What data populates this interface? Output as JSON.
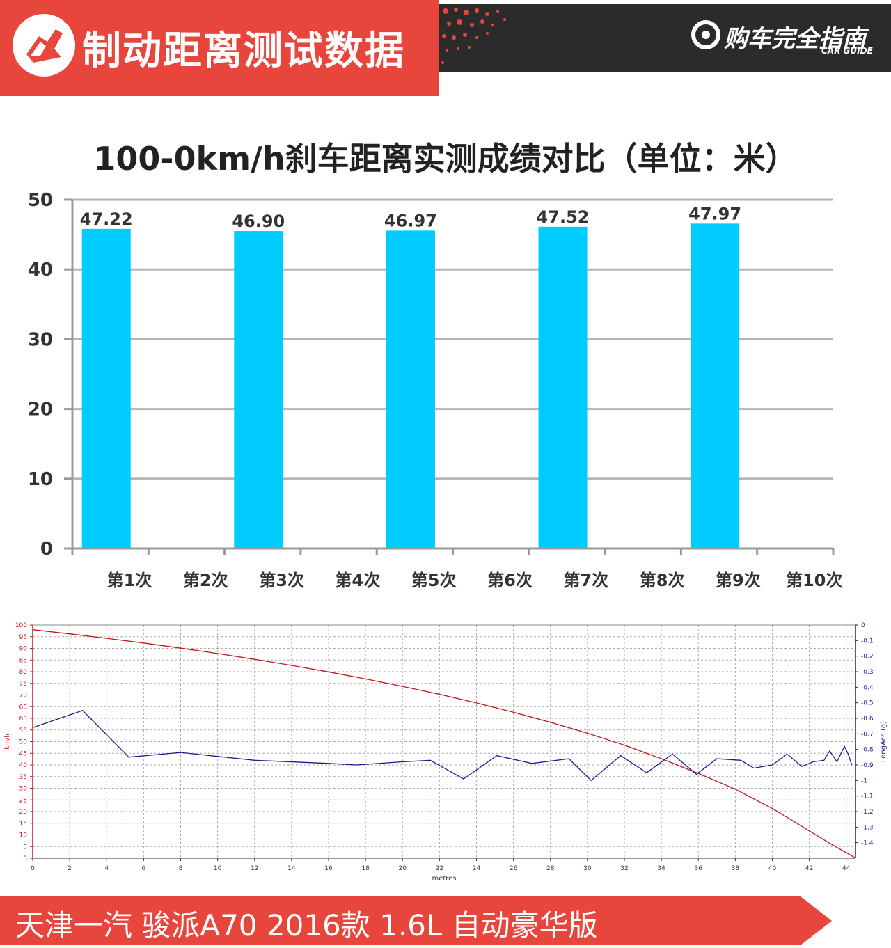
{
  "header": {
    "title": "制动距离测试数据",
    "brand": "购车完全指南",
    "brand_sub": "CAR GUIDE",
    "accent_color": "#e8453c",
    "dark_color": "#2b2b2b"
  },
  "footer": {
    "text": "天津一汽 骏派A70 2016款 1.6L 自动豪华版"
  },
  "chart_data": [
    {
      "type": "bar",
      "title": "100-0km/h刹车距离实测成绩对比（单位：米）",
      "categories": [
        "第1次",
        "第2次",
        "第3次",
        "第4次",
        "第5次",
        "第6次",
        "第7次",
        "第8次",
        "第9次",
        "第10次"
      ],
      "values": [
        47.22,
        null,
        46.9,
        null,
        46.97,
        null,
        47.52,
        null,
        47.97,
        null
      ],
      "value_labels": [
        "47.22",
        "",
        "46.90",
        "",
        "46.97",
        "",
        "47.52",
        "",
        "47.97",
        ""
      ],
      "ylim": [
        0,
        50
      ],
      "yticks": [
        0,
        10,
        20,
        30,
        40,
        50
      ],
      "grid": true,
      "bar_color": "#00ccff"
    },
    {
      "type": "line",
      "xlabel": "metres",
      "ylabel": "km/h",
      "y2label": "LongAcc (g)",
      "xlim": [
        0,
        44.5
      ],
      "ylim": [
        0,
        100
      ],
      "y2lim": [
        -1.5,
        0
      ],
      "xticks": [
        0,
        2,
        4,
        6,
        8,
        10,
        12,
        14,
        16,
        18,
        20,
        22,
        24,
        26,
        28,
        30,
        32,
        34,
        36,
        38,
        40,
        42,
        44
      ],
      "yticks": [
        0,
        5,
        10,
        15,
        20,
        25,
        30,
        35,
        40,
        45,
        50,
        55,
        60,
        65,
        70,
        75,
        80,
        85,
        90,
        95,
        100
      ],
      "y2ticks": [
        "0",
        "-0.1",
        "-0.2",
        "-0.3",
        "-0.4",
        "-0.5",
        "-0.6",
        "-0.7",
        "-0.8",
        "-0.9",
        "-1",
        "-1.1",
        "-1.2",
        "-1.3",
        "-1.4"
      ],
      "grid": true,
      "series": [
        {
          "axis": "left",
          "color": "#c0161a",
          "x": [
            0,
            2,
            4,
            6,
            8,
            10,
            12,
            14,
            16,
            18,
            20,
            22,
            24,
            26,
            28,
            30,
            32,
            34,
            36,
            38,
            40,
            41,
            42,
            43,
            43.5,
            44,
            44.3,
            44.5
          ],
          "y": [
            98,
            96.2,
            94.3,
            92.3,
            90.1,
            87.8,
            85.3,
            82.7,
            79.9,
            76.9,
            73.7,
            70.3,
            66.6,
            62.6,
            58.3,
            53.6,
            48.5,
            42.7,
            36.4,
            29.6,
            21.3,
            16.6,
            11.7,
            6.9,
            4.6,
            2.4,
            1,
            0
          ]
        },
        {
          "axis": "right",
          "color": "#1c1c8c",
          "x": [
            0,
            2.7,
            5.2,
            8,
            12,
            16,
            17.5,
            20,
            21.5,
            23.3,
            25.1,
            27,
            29,
            30.2,
            31.8,
            33.2,
            34.6,
            35.9,
            37,
            38.3,
            39,
            40,
            40.8,
            41.6,
            42.2,
            42.8,
            43.1,
            43.5,
            43.9,
            44.1,
            44.3
          ],
          "y": [
            -0.66,
            -0.55,
            -0.85,
            -0.82,
            -0.87,
            -0.89,
            -0.9,
            -0.88,
            -0.87,
            -0.99,
            -0.84,
            -0.89,
            -0.86,
            -1.0,
            -0.84,
            -0.95,
            -0.83,
            -0.96,
            -0.86,
            -0.87,
            -0.92,
            -0.9,
            -0.83,
            -0.91,
            -0.88,
            -0.87,
            -0.81,
            -0.88,
            -0.78,
            -0.83,
            -0.9
          ]
        }
      ]
    }
  ]
}
